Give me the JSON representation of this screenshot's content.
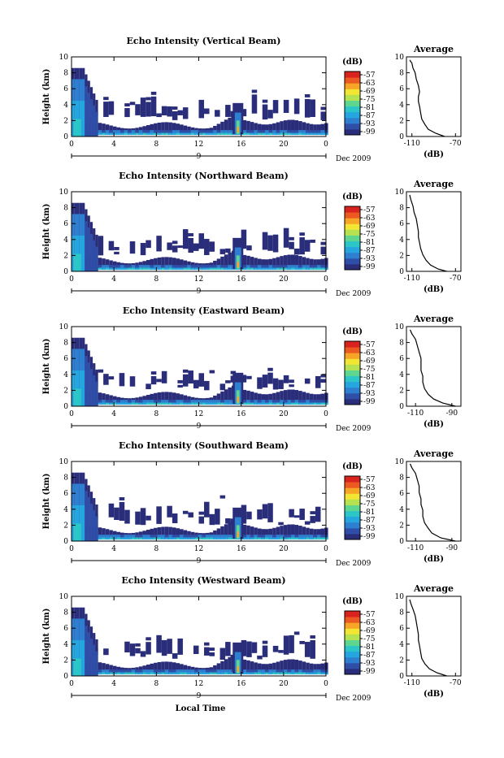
{
  "chart_data": [
    {
      "type": "heatmap",
      "title": "Echo Intensity (Vertical Beam)",
      "ylabel": "Height (km)",
      "xlabel": "",
      "x_ticks": [
        "0",
        "4",
        "8",
        "12",
        "16",
        "20",
        "0"
      ],
      "y_ticks": [
        "0",
        "2",
        "4",
        "6",
        "8",
        "10"
      ],
      "xlim": [
        0,
        24
      ],
      "ylim": [
        0,
        10
      ],
      "date_tick": "9",
      "date_label": "Dec 2009",
      "colorbar": {
        "label": "(dB)",
        "ticks": [
          "-57",
          "-63",
          "-69",
          "-75",
          "-81",
          "-87",
          "-93",
          "-99"
        ]
      },
      "average": {
        "title": "Average",
        "xlabel": "(dB)",
        "x_ticks": [
          "-110",
          "-70"
        ],
        "xlim": [
          -115,
          -65
        ],
        "y_ticks": [
          "0",
          "2",
          "4",
          "6",
          "8",
          "10"
        ],
        "ylim": [
          0,
          10
        ],
        "profile": [
          [
            -80,
            0
          ],
          [
            -88,
            0.4
          ],
          [
            -95,
            0.9
          ],
          [
            -98,
            1.5
          ],
          [
            -101,
            2.2
          ],
          [
            -102,
            3.0
          ],
          [
            -103,
            3.8
          ],
          [
            -104,
            4.4
          ],
          [
            -104,
            5.0
          ],
          [
            -103,
            5.6
          ],
          [
            -104,
            6.4
          ],
          [
            -106,
            7.2
          ],
          [
            -107,
            8.0
          ],
          [
            -109,
            8.6
          ],
          [
            -110,
            9.2
          ],
          [
            -112,
            9.6
          ]
        ]
      }
    },
    {
      "type": "heatmap",
      "title": "Echo Intensity (Northward Beam)",
      "ylabel": "Height (km)",
      "xlabel": "",
      "x_ticks": [
        "0",
        "4",
        "8",
        "12",
        "16",
        "20",
        "0"
      ],
      "y_ticks": [
        "0",
        "2",
        "4",
        "6",
        "8",
        "10"
      ],
      "xlim": [
        0,
        24
      ],
      "ylim": [
        0,
        10
      ],
      "date_tick": "9",
      "date_label": "Dec 2009",
      "colorbar": {
        "label": "(dB)",
        "ticks": [
          "-57",
          "-63",
          "-69",
          "-75",
          "-81",
          "-87",
          "-93",
          "-99"
        ]
      },
      "average": {
        "title": "Average",
        "xlabel": "(dB)",
        "x_ticks": [
          "-110",
          "-70"
        ],
        "xlim": [
          -115,
          -65
        ],
        "y_ticks": [
          "0",
          "2",
          "4",
          "6",
          "8",
          "10"
        ],
        "ylim": [
          0,
          10
        ],
        "profile": [
          [
            -78,
            0
          ],
          [
            -86,
            0.3
          ],
          [
            -93,
            0.8
          ],
          [
            -97,
            1.4
          ],
          [
            -100,
            2.1
          ],
          [
            -102,
            2.9
          ],
          [
            -103,
            3.6
          ],
          [
            -104,
            4.3
          ],
          [
            -104,
            5.0
          ],
          [
            -105,
            5.8
          ],
          [
            -106,
            6.6
          ],
          [
            -108,
            7.4
          ],
          [
            -109,
            8.2
          ],
          [
            -111,
            9.0
          ],
          [
            -112,
            9.6
          ]
        ]
      }
    },
    {
      "type": "heatmap",
      "title": "Echo Intensity (Eastward Beam)",
      "ylabel": "Height (km)",
      "xlabel": "",
      "x_ticks": [
        "0",
        "4",
        "8",
        "12",
        "16",
        "20",
        "0"
      ],
      "y_ticks": [
        "0",
        "2",
        "4",
        "6",
        "8",
        "10"
      ],
      "xlim": [
        0,
        24
      ],
      "ylim": [
        0,
        10
      ],
      "date_tick": "9",
      "date_label": "Dec 2009",
      "colorbar": {
        "label": "(dB)",
        "ticks": [
          "-57",
          "-63",
          "-69",
          "-75",
          "-81",
          "-87",
          "-93",
          "-99"
        ]
      },
      "average": {
        "title": "Average",
        "xlabel": "(dB)",
        "x_ticks": [
          "-110",
          "-90"
        ],
        "xlim": [
          -115,
          -85
        ],
        "y_ticks": [
          "0",
          "2",
          "4",
          "6",
          "8",
          "10"
        ],
        "ylim": [
          0,
          10
        ],
        "profile": [
          [
            -88,
            0
          ],
          [
            -95,
            0.4
          ],
          [
            -100,
            0.9
          ],
          [
            -103,
            1.5
          ],
          [
            -105,
            2.2
          ],
          [
            -106,
            3.0
          ],
          [
            -106,
            3.8
          ],
          [
            -107,
            4.5
          ],
          [
            -107,
            5.2
          ],
          [
            -107,
            6.0
          ],
          [
            -108,
            6.8
          ],
          [
            -109,
            7.6
          ],
          [
            -110,
            8.4
          ],
          [
            -112,
            9.1
          ],
          [
            -113,
            9.6
          ]
        ]
      }
    },
    {
      "type": "heatmap",
      "title": "Echo Intensity (Southward Beam)",
      "ylabel": "Height (km)",
      "xlabel": "",
      "x_ticks": [
        "0",
        "4",
        "8",
        "12",
        "16",
        "20",
        "0"
      ],
      "y_ticks": [
        "0",
        "2",
        "4",
        "6",
        "8",
        "10"
      ],
      "xlim": [
        0,
        24
      ],
      "ylim": [
        0,
        10
      ],
      "date_tick": "9",
      "date_label": "Dec 2009",
      "colorbar": {
        "label": "(dB)",
        "ticks": [
          "-57",
          "-63",
          "-69",
          "-75",
          "-81",
          "-87",
          "-93",
          "-99"
        ]
      },
      "average": {
        "title": "Average",
        "xlabel": "(dB)",
        "x_ticks": [
          "-110",
          "-90"
        ],
        "xlim": [
          -115,
          -85
        ],
        "y_ticks": [
          "0",
          "2",
          "4",
          "6",
          "8",
          "10"
        ],
        "ylim": [
          0,
          10
        ],
        "profile": [
          [
            -88,
            0
          ],
          [
            -96,
            0.4
          ],
          [
            -101,
            1.0
          ],
          [
            -103,
            1.6
          ],
          [
            -105,
            2.3
          ],
          [
            -106,
            3.1
          ],
          [
            -106,
            3.9
          ],
          [
            -107,
            4.6
          ],
          [
            -107,
            5.3
          ],
          [
            -108,
            6.1
          ],
          [
            -108,
            6.9
          ],
          [
            -109,
            7.7
          ],
          [
            -110,
            8.5
          ],
          [
            -112,
            9.2
          ],
          [
            -113,
            9.7
          ]
        ]
      }
    },
    {
      "type": "heatmap",
      "title": "Echo Intensity (Westward Beam)",
      "ylabel": "Height (km)",
      "xlabel": "Local Time",
      "x_ticks": [
        "0",
        "4",
        "8",
        "12",
        "16",
        "20",
        "0"
      ],
      "y_ticks": [
        "0",
        "2",
        "4",
        "6",
        "8",
        "10"
      ],
      "xlim": [
        0,
        24
      ],
      "ylim": [
        0,
        10
      ],
      "date_tick": "9",
      "date_label": "Dec 2009",
      "colorbar": {
        "label": "(dB)",
        "ticks": [
          "-57",
          "-63",
          "-69",
          "-75",
          "-81",
          "-87",
          "-93",
          "-99"
        ]
      },
      "average": {
        "title": "Average",
        "xlabel": "(dB)",
        "x_ticks": [
          "-110",
          "-70"
        ],
        "xlim": [
          -115,
          -65
        ],
        "y_ticks": [
          "0",
          "2",
          "4",
          "6",
          "8",
          "10"
        ],
        "ylim": [
          0,
          10
        ],
        "profile": [
          [
            -78,
            0
          ],
          [
            -87,
            0.4
          ],
          [
            -94,
            0.9
          ],
          [
            -98,
            1.5
          ],
          [
            -101,
            2.2
          ],
          [
            -102,
            3.0
          ],
          [
            -103,
            3.8
          ],
          [
            -104,
            4.5
          ],
          [
            -104,
            5.2
          ],
          [
            -105,
            6.0
          ],
          [
            -106,
            6.8
          ],
          [
            -107,
            7.6
          ],
          [
            -109,
            8.4
          ],
          [
            -111,
            9.1
          ],
          [
            -112,
            9.6
          ]
        ]
      }
    }
  ],
  "colors": {
    "scale": [
      "#2a2d7a",
      "#2f4ea8",
      "#2f7fd0",
      "#26a6de",
      "#2cc6c8",
      "#5fd68f",
      "#b6e251",
      "#f3e534",
      "#f7a526",
      "#ec5a22",
      "#d9231f"
    ],
    "background": "#ffffff"
  }
}
